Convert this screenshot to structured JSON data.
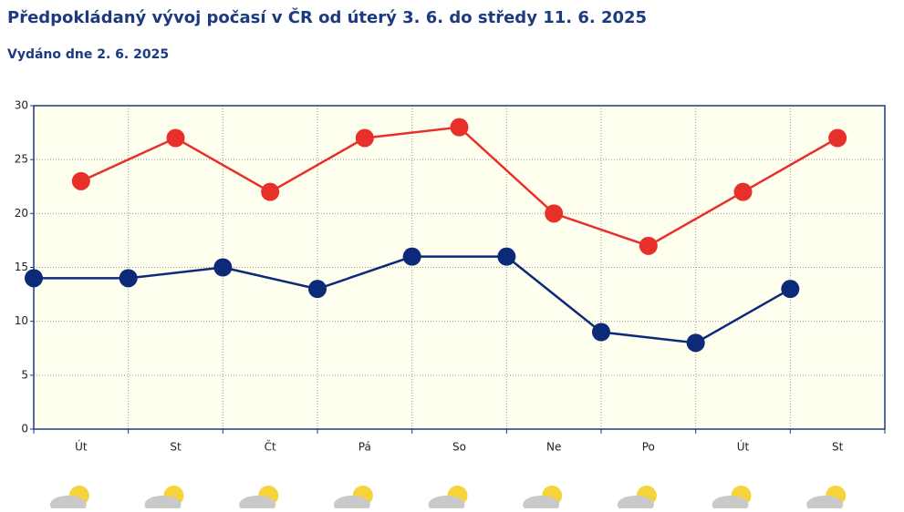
{
  "chart_data": {
    "type": "line",
    "title": "Předpokládaný vývoj počasí v ČR od úterý 3. 6. do středy 11. 6. 2025",
    "subtitle": "Vydáno dne 2. 6. 2025",
    "categories": [
      "Út",
      "St",
      "Čt",
      "Pá",
      "So",
      "Ne",
      "Po",
      "Út",
      "St"
    ],
    "series": [
      {
        "color": "#0d2a78",
        "values": [
          14,
          14,
          15,
          13,
          16,
          16,
          9,
          8,
          13
        ]
      },
      {
        "color": "#e8302a",
        "values": [
          23,
          27,
          22,
          27,
          28,
          20,
          17,
          22,
          27
        ]
      }
    ],
    "ylim": [
      0,
      30
    ],
    "yticks": [
      0,
      5,
      10,
      15,
      20,
      25,
      30
    ],
    "grid": true
  }
}
